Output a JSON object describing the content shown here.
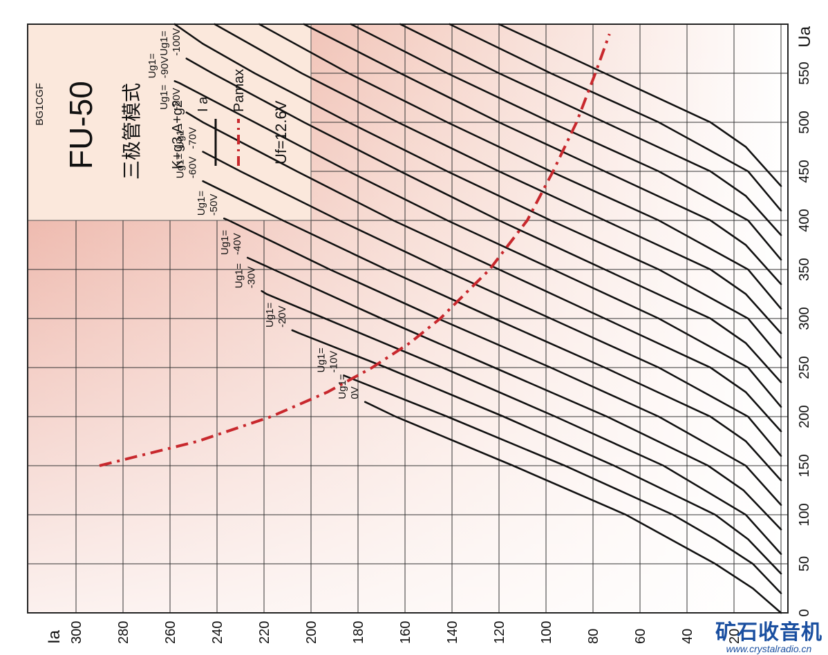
{
  "chart_data": {
    "type": "line",
    "title": "FU-50",
    "subtitle": "三极管模式",
    "id_code": "BG1CGF",
    "connection": "K+g3,A+g2",
    "filament": "Uf=12.6V",
    "legend": [
      {
        "name": "I a",
        "style": "solid",
        "color": "#111111"
      },
      {
        "name": "Pamax",
        "style": "dash-dot",
        "color": "#c8282d"
      }
    ],
    "xlabel": "Ua",
    "ylabel": "Ia",
    "xlim": [
      0,
      600
    ],
    "ylim": [
      0,
      300
    ],
    "x_ticks": [
      0,
      50,
      100,
      150,
      200,
      250,
      300,
      350,
      400,
      450,
      500,
      550
    ],
    "y_ticks": [
      20,
      40,
      60,
      80,
      100,
      120,
      140,
      160,
      180,
      200,
      220,
      240,
      260,
      280,
      300
    ],
    "series": [
      {
        "label": "Ug1=\n0V",
        "points": [
          [
            0,
            0
          ],
          [
            25,
            12
          ],
          [
            50,
            28
          ],
          [
            100,
            66
          ],
          [
            150,
            114
          ],
          [
            200,
            164
          ],
          [
            215,
            177
          ]
        ]
      },
      {
        "label": "Ug1=\n-10V",
        "points": [
          [
            20,
            0
          ],
          [
            50,
            12
          ],
          [
            75,
            28
          ],
          [
            100,
            46
          ],
          [
            150,
            92
          ],
          [
            200,
            142
          ],
          [
            240,
            184
          ],
          [
            242,
            186
          ]
        ]
      },
      {
        "label": "Ug1=\n-20V",
        "points": [
          [
            40,
            0
          ],
          [
            75,
            14
          ],
          [
            100,
            28
          ],
          [
            150,
            71
          ],
          [
            200,
            118
          ],
          [
            250,
            168
          ],
          [
            285,
            205
          ],
          [
            288,
            208
          ]
        ]
      },
      {
        "label": "Ug1=\n-30V",
        "points": [
          [
            60,
            0
          ],
          [
            100,
            15
          ],
          [
            150,
            50
          ],
          [
            200,
            96
          ],
          [
            250,
            144
          ],
          [
            300,
            194
          ],
          [
            325,
            219
          ],
          [
            328,
            221
          ]
        ]
      },
      {
        "label": "Ug1=\n-40V",
        "points": [
          [
            85,
            0
          ],
          [
            125,
            16
          ],
          [
            150,
            31
          ],
          [
            200,
            74
          ],
          [
            250,
            122
          ],
          [
            300,
            170
          ],
          [
            350,
            216
          ],
          [
            362,
            227
          ]
        ]
      },
      {
        "label": "Ug1=\n-50V",
        "points": [
          [
            110,
            0
          ],
          [
            150,
            15
          ],
          [
            200,
            52
          ],
          [
            250,
            98
          ],
          [
            300,
            146
          ],
          [
            350,
            192
          ],
          [
            400,
            235
          ],
          [
            402,
            237
          ]
        ]
      },
      {
        "label": "Ug1=\n-60V",
        "points": [
          [
            135,
            0
          ],
          [
            175,
            15
          ],
          [
            200,
            30
          ],
          [
            250,
            75
          ],
          [
            300,
            122
          ],
          [
            350,
            168
          ],
          [
            400,
            212
          ],
          [
            440,
            246
          ]
        ]
      },
      {
        "label": "Ug1=\n-70V",
        "points": [
          [
            160,
            0
          ],
          [
            200,
            14
          ],
          [
            250,
            52
          ],
          [
            300,
            98
          ],
          [
            350,
            144
          ],
          [
            400,
            188
          ],
          [
            450,
            230
          ],
          [
            470,
            246
          ]
        ]
      },
      {
        "label": "Ug1=\n-80V",
        "points": [
          [
            185,
            0
          ],
          [
            225,
            15
          ],
          [
            250,
            30
          ],
          [
            300,
            75
          ],
          [
            350,
            120
          ],
          [
            400,
            165
          ],
          [
            450,
            206
          ],
          [
            500,
            246
          ],
          [
            510,
            253
          ]
        ]
      },
      {
        "label": "Ug1=\n-90V",
        "points": [
          [
            210,
            0
          ],
          [
            250,
            14
          ],
          [
            300,
            52
          ],
          [
            350,
            97
          ],
          [
            400,
            142
          ],
          [
            450,
            184
          ],
          [
            500,
            224
          ],
          [
            540,
            256
          ],
          [
            542,
            258
          ]
        ]
      },
      {
        "label": "Ug1=\n-100V",
        "points": [
          [
            235,
            0
          ],
          [
            275,
            15
          ],
          [
            300,
            30
          ],
          [
            350,
            75
          ],
          [
            400,
            120
          ],
          [
            450,
            162
          ],
          [
            500,
            203
          ],
          [
            550,
            242
          ],
          [
            565,
            253
          ]
        ]
      },
      {
        "label": "",
        "points": [
          [
            260,
            0
          ],
          [
            300,
            14
          ],
          [
            350,
            52
          ],
          [
            400,
            98
          ],
          [
            450,
            142
          ],
          [
            500,
            184
          ],
          [
            550,
            224
          ],
          [
            580,
            246
          ],
          [
            600,
            258
          ]
        ]
      },
      {
        "label": "",
        "points": [
          [
            285,
            0
          ],
          [
            325,
            15
          ],
          [
            350,
            30
          ],
          [
            400,
            75
          ],
          [
            450,
            120
          ],
          [
            500,
            163
          ],
          [
            550,
            204
          ],
          [
            600,
            241
          ]
        ]
      },
      {
        "label": "",
        "points": [
          [
            310,
            0
          ],
          [
            350,
            14
          ],
          [
            400,
            52
          ],
          [
            450,
            98
          ],
          [
            500,
            142
          ],
          [
            550,
            184
          ],
          [
            600,
            222
          ]
        ]
      },
      {
        "label": "",
        "points": [
          [
            335,
            0
          ],
          [
            375,
            15
          ],
          [
            400,
            30
          ],
          [
            450,
            75
          ],
          [
            500,
            120
          ],
          [
            550,
            162
          ],
          [
            600,
            203
          ]
        ]
      },
      {
        "label": "",
        "points": [
          [
            360,
            0
          ],
          [
            400,
            14
          ],
          [
            450,
            52
          ],
          [
            500,
            98
          ],
          [
            550,
            142
          ],
          [
            600,
            183
          ]
        ]
      },
      {
        "label": "",
        "points": [
          [
            385,
            0
          ],
          [
            425,
            15
          ],
          [
            450,
            30
          ],
          [
            500,
            75
          ],
          [
            550,
            120
          ],
          [
            600,
            162
          ]
        ]
      },
      {
        "label": "",
        "points": [
          [
            410,
            0
          ],
          [
            450,
            14
          ],
          [
            500,
            52
          ],
          [
            550,
            98
          ],
          [
            600,
            141
          ]
        ]
      },
      {
        "label": "",
        "points": [
          [
            435,
            0
          ],
          [
            475,
            15
          ],
          [
            500,
            30
          ],
          [
            550,
            75
          ],
          [
            600,
            120
          ]
        ]
      }
    ],
    "pamax_points": [
      [
        150,
        290
      ],
      [
        175,
        248
      ],
      [
        200,
        217
      ],
      [
        225,
        193
      ],
      [
        250,
        174
      ],
      [
        275,
        158
      ],
      [
        300,
        145
      ],
      [
        350,
        124
      ],
      [
        400,
        108
      ],
      [
        450,
        97
      ],
      [
        500,
        87
      ],
      [
        550,
        79
      ],
      [
        590,
        73
      ]
    ],
    "grid": true
  },
  "watermark": {
    "title": "矿石收音机",
    "url": "www.crystalradio.cn"
  }
}
